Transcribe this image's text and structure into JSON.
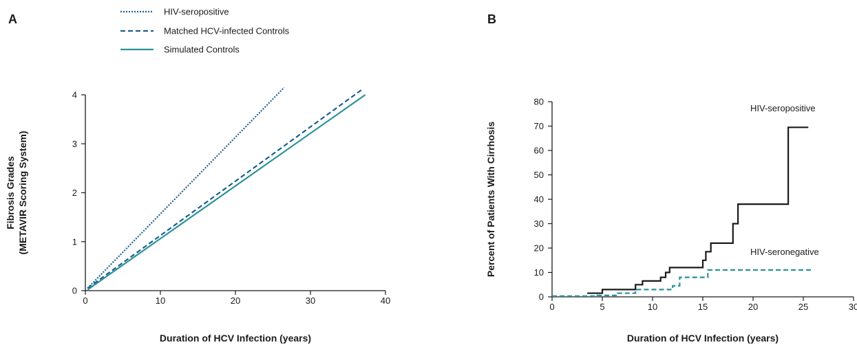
{
  "colors": {
    "blue": "#1b5e8f",
    "teal": "#2a9295",
    "black": "#1a1a1a"
  },
  "chart_data": [
    {
      "panel": "A",
      "type": "line",
      "xlabel": "Duration of HCV Infection (years)",
      "ylabel": [
        "Fibrosis Grades",
        "(METAVIR Scoring System)"
      ],
      "xlim": [
        0,
        40
      ],
      "ylim": [
        0,
        4
      ],
      "xticks": [
        0,
        10,
        20,
        30,
        40
      ],
      "yticks": [
        0,
        1,
        2,
        3,
        4
      ],
      "grid": false,
      "legend_position": "top",
      "series": [
        {
          "name": "HIV-seropositive",
          "style": "dotted",
          "color": "#1b5e8f",
          "points": [
            [
              0.3,
              0.05
            ],
            [
              26.5,
              4.15
            ]
          ]
        },
        {
          "name": "Matched HCV-infected Controls",
          "style": "dashed",
          "color": "#1b5e8f",
          "points": [
            [
              0.3,
              0.05
            ],
            [
              36.8,
              4.1
            ]
          ]
        },
        {
          "name": "Simulated Controls",
          "style": "solid",
          "color": "#2a9295",
          "points": [
            [
              0.3,
              0.02
            ],
            [
              37.3,
              4.0
            ]
          ]
        }
      ]
    },
    {
      "panel": "B",
      "type": "line",
      "step": true,
      "xlabel": "Duration of HCV Infection (years)",
      "ylabel": "Percent of Patients With Cirrhosis",
      "xlim": [
        0,
        30
      ],
      "ylim": [
        0,
        80
      ],
      "xticks": [
        0,
        5,
        10,
        15,
        20,
        25,
        30
      ],
      "yticks": [
        0,
        10,
        20,
        30,
        40,
        50,
        60,
        70,
        80
      ],
      "grid": false,
      "series": [
        {
          "name": "HIV-seropositive",
          "style": "solid",
          "color": "#1a1a1a",
          "points": [
            [
              3.5,
              1.5
            ],
            [
              5.0,
              1.5
            ],
            [
              5.0,
              3.0
            ],
            [
              8.3,
              3.0
            ],
            [
              8.3,
              5.0
            ],
            [
              9.0,
              5.0
            ],
            [
              9.0,
              6.5
            ],
            [
              10.8,
              6.5
            ],
            [
              10.8,
              8.0
            ],
            [
              11.3,
              8.0
            ],
            [
              11.3,
              10.0
            ],
            [
              11.7,
              10.0
            ],
            [
              11.7,
              12.0
            ],
            [
              15.0,
              12.0
            ],
            [
              15.0,
              15.0
            ],
            [
              15.3,
              15.0
            ],
            [
              15.3,
              18.5
            ],
            [
              15.8,
              18.5
            ],
            [
              15.8,
              22.0
            ],
            [
              18.0,
              22.0
            ],
            [
              18.0,
              30.0
            ],
            [
              18.5,
              30.0
            ],
            [
              18.5,
              38.0
            ],
            [
              23.5,
              38.0
            ],
            [
              23.5,
              69.5
            ],
            [
              25.5,
              69.5
            ]
          ]
        },
        {
          "name": "HIV-seronegative",
          "style": "dashed",
          "color": "#2a9295",
          "points": [
            [
              0.0,
              0.3
            ],
            [
              4.5,
              0.3
            ],
            [
              4.5,
              0.6
            ],
            [
              6.5,
              0.6
            ],
            [
              6.5,
              1.5
            ],
            [
              8.3,
              1.5
            ],
            [
              8.3,
              3.0
            ],
            [
              12.0,
              3.0
            ],
            [
              12.0,
              4.5
            ],
            [
              12.7,
              4.5
            ],
            [
              12.7,
              8.0
            ],
            [
              15.5,
              8.0
            ],
            [
              15.5,
              11.0
            ],
            [
              26.0,
              11.0
            ]
          ]
        }
      ]
    }
  ]
}
